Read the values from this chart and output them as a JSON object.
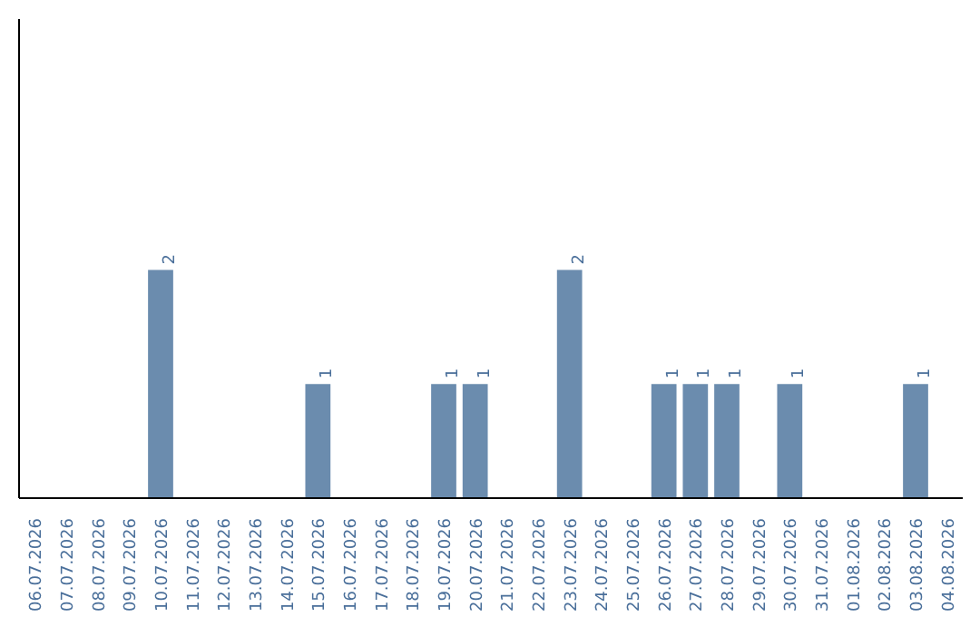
{
  "chart_data": {
    "type": "bar",
    "categories": [
      "06.07.2026",
      "07.07.2026",
      "08.07.2026",
      "09.07.2026",
      "10.07.2026",
      "11.07.2026",
      "12.07.2026",
      "13.07.2026",
      "14.07.2026",
      "15.07.2026",
      "16.07.2026",
      "17.07.2026",
      "18.07.2026",
      "19.07.2026",
      "20.07.2026",
      "21.07.2026",
      "22.07.2026",
      "23.07.2026",
      "24.07.2026",
      "25.07.2026",
      "26.07.2026",
      "27.07.2026",
      "28.07.2026",
      "29.07.2026",
      "30.07.2026",
      "31.07.2026",
      "01.08.2026",
      "02.08.2026",
      "03.08.2026",
      "04.08.2026"
    ],
    "values": [
      0,
      0,
      0,
      0,
      2,
      0,
      0,
      0,
      0,
      1,
      0,
      0,
      0,
      1,
      1,
      0,
      0,
      2,
      0,
      0,
      1,
      1,
      1,
      0,
      1,
      0,
      0,
      0,
      1,
      0
    ],
    "value_labels": [
      null,
      null,
      null,
      null,
      "2",
      null,
      null,
      null,
      null,
      "1",
      null,
      null,
      null,
      "1",
      "1",
      null,
      null,
      "2",
      null,
      null,
      "1",
      "1",
      "1",
      null,
      "1",
      null,
      null,
      null,
      "1",
      null
    ],
    "color": "#6b8cae",
    "ylim": [
      0,
      4.2
    ],
    "tick_labels": "x",
    "grid": false
  }
}
